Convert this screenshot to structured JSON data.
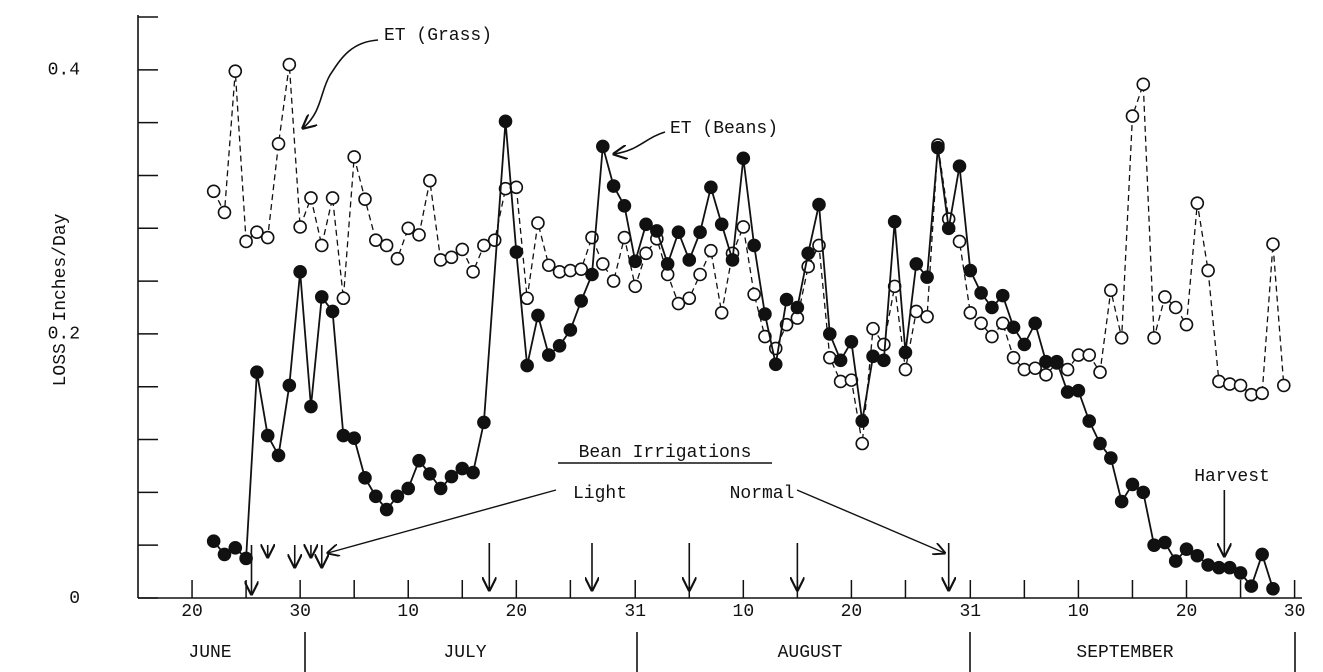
{
  "chart_data": {
    "type": "line",
    "y_label": "LOSS  Inches/Day",
    "xlim": [
      15,
      122.5
    ],
    "ylim": [
      0,
      0.44
    ],
    "xticks": [
      20,
      {
        "value": 25,
        "label": null
      },
      30,
      {
        "value": 35,
        "label": null
      },
      {
        "value": 40,
        "label": "10"
      },
      {
        "value": 45,
        "label": null
      },
      {
        "value": 50,
        "label": "20"
      },
      {
        "value": 55,
        "label": null
      },
      {
        "value": 61,
        "label": "31"
      },
      {
        "value": 66,
        "label": null
      },
      {
        "value": 71,
        "label": "10"
      },
      {
        "value": 76,
        "label": null
      },
      {
        "value": 81,
        "label": "20"
      },
      {
        "value": 86,
        "label": null
      },
      {
        "value": 92,
        "label": "31"
      },
      {
        "value": 97,
        "label": null
      },
      {
        "value": 102,
        "label": "10"
      },
      {
        "value": 107,
        "label": null
      },
      {
        "value": 112,
        "label": "20"
      },
      {
        "value": 117,
        "label": null
      },
      {
        "value": 122,
        "label": "30"
      }
    ],
    "yticks": [
      0,
      {
        "value": 0.04,
        "label": null
      },
      {
        "value": 0.08,
        "label": null
      },
      {
        "value": 0.12,
        "label": null
      },
      {
        "value": 0.16,
        "label": null
      },
      0.2,
      {
        "value": 0.24,
        "label": null
      },
      {
        "value": 0.28,
        "label": null
      },
      {
        "value": 0.32,
        "label": null
      },
      {
        "value": 0.36,
        "label": null
      },
      0.4,
      {
        "value": 0.44,
        "label": null
      }
    ],
    "months": [
      "JUNE",
      "JULY",
      "AUGUST",
      "SEPTEMBER"
    ],
    "series": [
      {
        "name": "ET (Grass)",
        "color": "#111111",
        "marker": "open",
        "dashed": true,
        "x": [
          22,
          23,
          24,
          25,
          26,
          27,
          28,
          29,
          30,
          31,
          32,
          33,
          34,
          35,
          36,
          37,
          38,
          39,
          40,
          41,
          42,
          43,
          44,
          45,
          46,
          47,
          48,
          49,
          50,
          51,
          52,
          53,
          54,
          55,
          56,
          57,
          58,
          59,
          60,
          61,
          62,
          63,
          64,
          65,
          66,
          67,
          68,
          69,
          70,
          71,
          72,
          73,
          74,
          75,
          76,
          77,
          78,
          79,
          80,
          81,
          82,
          83,
          84,
          85,
          86,
          87,
          88,
          89,
          90,
          91,
          92,
          93,
          94,
          95,
          96,
          97,
          98,
          99,
          100,
          101,
          102,
          103,
          104,
          105,
          106,
          107,
          108,
          109,
          110,
          111,
          112,
          113,
          114,
          115,
          116,
          117,
          118,
          119,
          120,
          121
        ],
        "values": [
          0.308,
          0.292,
          0.399,
          0.27,
          0.277,
          0.273,
          0.344,
          0.404,
          0.281,
          0.303,
          0.267,
          0.303,
          0.227,
          0.334,
          0.302,
          0.271,
          0.267,
          0.257,
          0.28,
          0.275,
          0.316,
          0.256,
          0.258,
          0.264,
          0.247,
          0.267,
          0.271,
          0.31,
          0.311,
          0.227,
          0.284,
          0.252,
          0.247,
          0.248,
          0.249,
          0.273,
          0.253,
          0.24,
          0.273,
          0.236,
          0.261,
          0.272,
          0.245,
          0.223,
          0.227,
          0.245,
          0.263,
          0.216,
          0.261,
          0.281,
          0.23,
          0.198,
          0.189,
          0.207,
          0.212,
          0.251,
          0.267,
          0.182,
          0.164,
          0.165,
          0.117,
          0.204,
          0.192,
          0.236,
          0.173,
          0.217,
          0.213,
          0.343,
          0.287,
          0.27,
          0.216,
          0.208,
          0.198,
          0.208,
          0.182,
          0.173,
          0.174,
          0.169,
          0.178,
          0.173,
          0.184,
          0.184,
          0.171,
          0.233,
          0.197,
          0.365,
          0.389,
          0.197,
          0.228,
          0.22,
          0.207,
          0.299,
          0.248,
          0.164,
          0.162,
          0.161,
          0.154,
          0.155,
          0.268,
          0.161
        ]
      },
      {
        "name": "ET (Beans)",
        "color": "#111111",
        "marker": "filled",
        "dashed": false,
        "x": [
          22,
          23,
          24,
          25,
          26,
          27,
          28,
          29,
          30,
          31,
          32,
          33,
          34,
          35,
          36,
          37,
          38,
          39,
          40,
          41,
          42,
          43,
          44,
          45,
          46,
          47,
          49,
          50,
          51,
          52,
          53,
          54,
          55,
          56,
          57,
          58,
          59,
          60,
          61,
          62,
          63,
          64,
          65,
          66,
          67,
          68,
          69,
          70,
          71,
          72,
          73,
          74,
          75,
          76,
          77,
          78,
          79,
          80,
          81,
          82,
          83,
          84,
          85,
          86,
          87,
          88,
          89,
          90,
          91,
          92,
          93,
          94,
          95,
          96,
          97,
          98,
          99,
          100,
          101,
          102,
          103,
          104,
          105,
          106,
          107,
          108,
          109,
          110,
          111,
          112,
          113,
          114,
          115,
          116,
          117,
          118,
          119,
          120
        ],
        "values": [
          0.043,
          0.033,
          0.038,
          0.03,
          0.171,
          0.123,
          0.108,
          0.161,
          0.247,
          0.145,
          0.228,
          0.217,
          0.123,
          0.121,
          0.091,
          0.077,
          0.067,
          0.077,
          0.083,
          0.104,
          0.094,
          0.083,
          0.092,
          0.098,
          0.095,
          0.133,
          0.361,
          0.262,
          0.176,
          0.214,
          0.184,
          0.191,
          0.203,
          0.225,
          0.245,
          0.342,
          0.312,
          0.297,
          0.255,
          0.283,
          0.278,
          0.253,
          0.277,
          0.256,
          0.277,
          0.311,
          0.283,
          0.256,
          0.333,
          0.267,
          0.215,
          0.177,
          0.226,
          0.22,
          0.261,
          0.298,
          0.2,
          0.18,
          0.194,
          0.134,
          0.183,
          0.18,
          0.285,
          0.186,
          0.253,
          0.243,
          0.341,
          0.28,
          0.327,
          0.248,
          0.231,
          0.22,
          0.229,
          0.205,
          0.192,
          0.208,
          0.179,
          0.179,
          0.156,
          0.157,
          0.134,
          0.117,
          0.106,
          0.073,
          0.086,
          0.08,
          0.04,
          0.042,
          0.028,
          0.037,
          0.032,
          0.025,
          0.023,
          0.023,
          0.019,
          0.009,
          0.033,
          0.007
        ]
      }
    ],
    "irrigations": {
      "title": "Bean Irrigations",
      "light_label": "Light",
      "light": [
        25.5,
        27,
        29.5,
        31,
        32
      ],
      "normal_label": "Normal",
      "normal": [
        47.5,
        57,
        66,
        76,
        90
      ]
    },
    "harvest": {
      "label": "Harvest",
      "x": 115.5
    }
  }
}
